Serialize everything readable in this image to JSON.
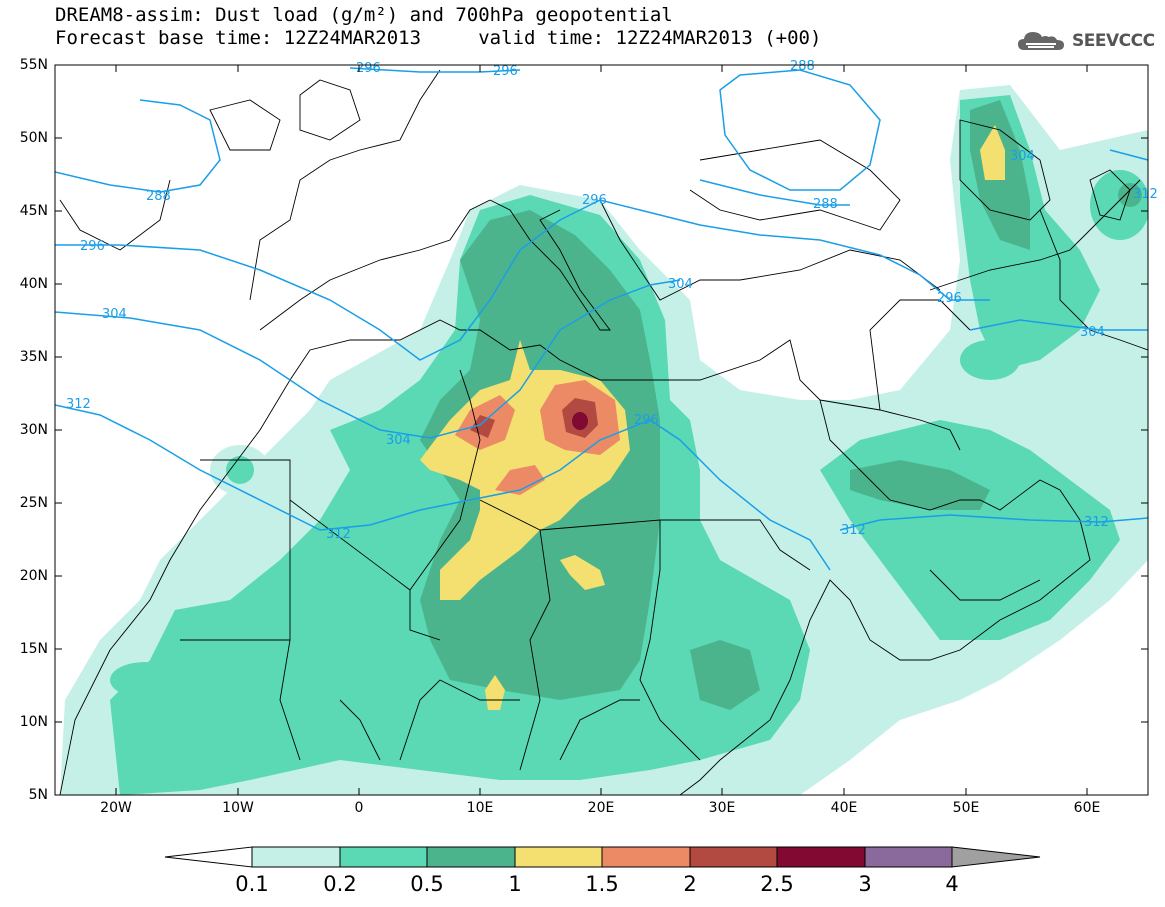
{
  "title": {
    "line1": "DREAM8-assim: Dust load (g/m²) and 700hPa geopotential",
    "line2": "Forecast base time: 12Z24MAR2013     valid time: 12Z24MAR2013 (+00)"
  },
  "logo": {
    "text": "SEEVCCC",
    "icon": "cloud-logo-icon"
  },
  "map": {
    "lon_range": [
      -25,
      65
    ],
    "lat_range": [
      5,
      55
    ],
    "lat_labels": [
      "55N",
      "50N",
      "45N",
      "40N",
      "35N",
      "30N",
      "25N",
      "20N",
      "15N",
      "10N",
      "5N"
    ],
    "lon_labels": [
      "20W",
      "10W",
      "0",
      "10E",
      "20E",
      "30E",
      "40E",
      "50E",
      "60E"
    ],
    "contour_labels": [
      "288",
      "296",
      "304",
      "312",
      "296",
      "288",
      "296",
      "304",
      "296",
      "312",
      "312",
      "304",
      "312",
      "312",
      "304",
      "288",
      "296",
      "296",
      "304"
    ]
  },
  "colorbar": {
    "labels": [
      "0.1",
      "0.2",
      "0.5",
      "1",
      "1.5",
      "2",
      "2.5",
      "3",
      "4"
    ],
    "colors": [
      "#c4f0e8",
      "#5ad9b4",
      "#4cb48c",
      "#f4e070",
      "#ec8a66",
      "#b24a42",
      "#820a32",
      "#8a6a9c",
      "#a0a0a0"
    ]
  },
  "colors": {
    "contour": "#1a9ee8",
    "land_bg": "#ffffff",
    "border": "#000000"
  }
}
